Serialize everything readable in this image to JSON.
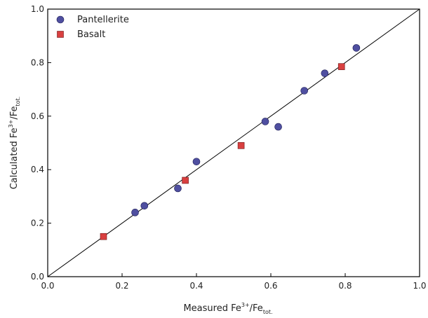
{
  "chart_data": {
    "type": "scatter",
    "xlabel": {
      "base": "Measured Fe",
      "sup": "3+",
      "mid": "/Fe",
      "sub": "tot."
    },
    "ylabel": {
      "base": "Calculated Fe",
      "sup": "3+",
      "mid": "/Fe",
      "sub": "tot."
    },
    "xlim": [
      0.0,
      1.0
    ],
    "ylim": [
      0.0,
      1.0
    ],
    "x_ticks": [
      "0.0",
      "0.2",
      "0.4",
      "0.6",
      "0.8",
      "1.0"
    ],
    "y_ticks": [
      "0.0",
      "0.2",
      "0.4",
      "0.6",
      "0.8",
      "1.0"
    ],
    "grid": false,
    "legend_position": "top-left",
    "reference_line": {
      "from": [
        0.0,
        0.0
      ],
      "to": [
        1.0,
        1.0
      ]
    },
    "series": [
      {
        "name": "Pantellerite",
        "marker": "circle",
        "color": "#4f4fa0",
        "points": [
          [
            0.235,
            0.24
          ],
          [
            0.26,
            0.265
          ],
          [
            0.35,
            0.33
          ],
          [
            0.4,
            0.43
          ],
          [
            0.585,
            0.58
          ],
          [
            0.62,
            0.56
          ],
          [
            0.69,
            0.695
          ],
          [
            0.745,
            0.76
          ],
          [
            0.83,
            0.855
          ]
        ]
      },
      {
        "name": "Basalt",
        "marker": "square",
        "color": "#d94040",
        "points": [
          [
            0.15,
            0.15
          ],
          [
            0.37,
            0.36
          ],
          [
            0.52,
            0.49
          ],
          [
            0.79,
            0.785
          ]
        ]
      }
    ]
  }
}
